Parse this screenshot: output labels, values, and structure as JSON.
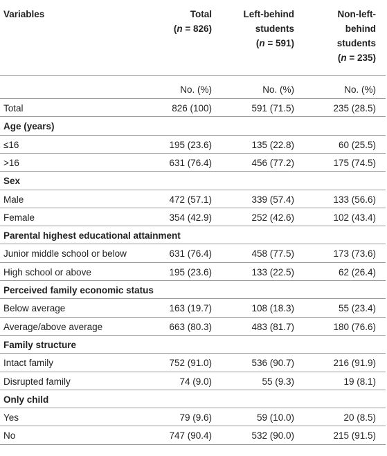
{
  "header": {
    "variables": "Variables",
    "col_total": [
      "Total",
      "(",
      "n",
      " = 826)"
    ],
    "col_left": [
      "Left-behind",
      "students",
      "(",
      "n",
      " = 591)"
    ],
    "col_nonleft": [
      "Non-left-",
      "behind",
      "students",
      "(",
      "n",
      " = 235)"
    ]
  },
  "units": {
    "total": "No. (%)",
    "left": "No. (%)",
    "nonleft": "No. (%)"
  },
  "rows": [
    {
      "type": "data",
      "label": "Total",
      "total": "826 (100)",
      "left": "591 (71.5)",
      "nonleft": "235 (28.5)"
    },
    {
      "type": "section",
      "label": "Age (years)"
    },
    {
      "type": "data",
      "label": "≤16",
      "total": "195 (23.6)",
      "left": "135 (22.8)",
      "nonleft": "60 (25.5)"
    },
    {
      "type": "data",
      "label": ">16",
      "total": "631 (76.4)",
      "left": "456 (77.2)",
      "nonleft": "175 (74.5)"
    },
    {
      "type": "section",
      "label": "Sex"
    },
    {
      "type": "data",
      "label": "Male",
      "total": "472 (57.1)",
      "left": "339 (57.4)",
      "nonleft": "133 (56.6)"
    },
    {
      "type": "data",
      "label": "Female",
      "total": "354 (42.9)",
      "left": "252 (42.6)",
      "nonleft": "102 (43.4)"
    },
    {
      "type": "section",
      "label": "Parental highest educational attainment"
    },
    {
      "type": "data",
      "label": "Junior middle school or below",
      "total": "631 (76.4)",
      "left": "458 (77.5)",
      "nonleft": "173 (73.6)"
    },
    {
      "type": "data",
      "label": "High school or above",
      "total": "195 (23.6)",
      "left": "133 (22.5)",
      "nonleft": "62 (26.4)"
    },
    {
      "type": "section",
      "label": "Perceived family economic status"
    },
    {
      "type": "data",
      "label": "Below average",
      "total": "163 (19.7)",
      "left": "108 (18.3)",
      "nonleft": "55 (23.4)"
    },
    {
      "type": "data",
      "label": "Average/above average",
      "total": "663 (80.3)",
      "left": "483 (81.7)",
      "nonleft": "180 (76.6)"
    },
    {
      "type": "section",
      "label": "Family structure"
    },
    {
      "type": "data",
      "label": "Intact family",
      "total": "752 (91.0)",
      "left": "536 (90.7)",
      "nonleft": "216 (91.9)"
    },
    {
      "type": "data",
      "label": "Disrupted family",
      "total": "74 (9.0)",
      "left": "55 (9.3)",
      "nonleft": "19 (8.1)"
    },
    {
      "type": "section",
      "label": "Only child"
    },
    {
      "type": "data",
      "label": "Yes",
      "total": "79 (9.6)",
      "left": "59 (10.0)",
      "nonleft": "20 (8.5)"
    },
    {
      "type": "data",
      "label": "No",
      "total": "747 (90.4)",
      "left": "532 (90.0)",
      "nonleft": "215 (91.5)"
    }
  ]
}
